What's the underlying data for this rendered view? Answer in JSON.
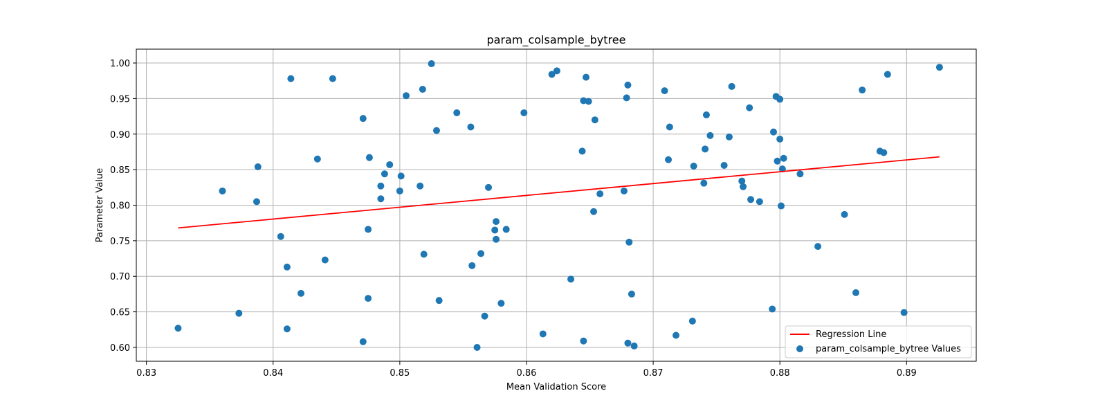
{
  "chart_data": {
    "type": "scatter",
    "title": "param_colsample_bytree",
    "xlabel": "Mean Validation Score",
    "ylabel": "Parameter Value",
    "xlim": [
      0.8292,
      0.8955
    ],
    "ylim": [
      0.5805,
      1.0195
    ],
    "xticks": [
      0.83,
      0.84,
      0.85,
      0.86,
      0.87,
      0.88,
      0.89
    ],
    "xtick_labels": [
      "0.83",
      "0.84",
      "0.85",
      "0.86",
      "0.87",
      "0.88",
      "0.89"
    ],
    "yticks": [
      0.6,
      0.65,
      0.7,
      0.75,
      0.8,
      0.85,
      0.9,
      0.95,
      1.0
    ],
    "ytick_labels": [
      "0.60",
      "0.65",
      "0.70",
      "0.75",
      "0.80",
      "0.85",
      "0.90",
      "0.95",
      "1.00"
    ],
    "grid": true,
    "legend_position": "lower right",
    "series": [
      {
        "name": "param_colsample_bytree Values",
        "kind": "scatter",
        "color": "#1f77b4",
        "points": [
          [
            0.8325,
            0.627
          ],
          [
            0.836,
            0.82
          ],
          [
            0.8373,
            0.648
          ],
          [
            0.8387,
            0.805
          ],
          [
            0.8388,
            0.854
          ],
          [
            0.8406,
            0.756
          ],
          [
            0.8411,
            0.713
          ],
          [
            0.8411,
            0.626
          ],
          [
            0.8414,
            0.978
          ],
          [
            0.8422,
            0.676
          ],
          [
            0.8435,
            0.865
          ],
          [
            0.8441,
            0.723
          ],
          [
            0.8447,
            0.978
          ],
          [
            0.8471,
            0.608
          ],
          [
            0.8471,
            0.922
          ],
          [
            0.8475,
            0.669
          ],
          [
            0.8475,
            0.766
          ],
          [
            0.8476,
            0.867
          ],
          [
            0.8485,
            0.827
          ],
          [
            0.8485,
            0.809
          ],
          [
            0.8488,
            0.844
          ],
          [
            0.8492,
            0.857
          ],
          [
            0.85,
            0.82
          ],
          [
            0.8501,
            0.841
          ],
          [
            0.8505,
            0.954
          ],
          [
            0.8516,
            0.827
          ],
          [
            0.8518,
            0.963
          ],
          [
            0.8519,
            0.731
          ],
          [
            0.8525,
            0.999
          ],
          [
            0.8529,
            0.905
          ],
          [
            0.8531,
            0.666
          ],
          [
            0.8545,
            0.93
          ],
          [
            0.8556,
            0.91
          ],
          [
            0.8557,
            0.715
          ],
          [
            0.8561,
            0.6
          ],
          [
            0.8564,
            0.732
          ],
          [
            0.8567,
            0.644
          ],
          [
            0.857,
            0.825
          ],
          [
            0.8575,
            0.765
          ],
          [
            0.8576,
            0.777
          ],
          [
            0.8576,
            0.752
          ],
          [
            0.858,
            0.662
          ],
          [
            0.8584,
            0.766
          ],
          [
            0.8598,
            0.93
          ],
          [
            0.8613,
            0.619
          ],
          [
            0.862,
            0.984
          ],
          [
            0.8624,
            0.989
          ],
          [
            0.8635,
            0.696
          ],
          [
            0.8644,
            0.876
          ],
          [
            0.8645,
            0.947
          ],
          [
            0.8645,
            0.609
          ],
          [
            0.8647,
            0.98
          ],
          [
            0.8649,
            0.946
          ],
          [
            0.8653,
            0.791
          ],
          [
            0.8654,
            0.92
          ],
          [
            0.8658,
            0.816
          ],
          [
            0.8677,
            0.82
          ],
          [
            0.8679,
            0.951
          ],
          [
            0.868,
            0.969
          ],
          [
            0.868,
            0.606
          ],
          [
            0.8681,
            0.748
          ],
          [
            0.8683,
            0.675
          ],
          [
            0.8685,
            0.602
          ],
          [
            0.8709,
            0.961
          ],
          [
            0.8712,
            0.864
          ],
          [
            0.8713,
            0.91
          ],
          [
            0.8718,
            0.617
          ],
          [
            0.8731,
            0.637
          ],
          [
            0.8732,
            0.855
          ],
          [
            0.874,
            0.831
          ],
          [
            0.8741,
            0.879
          ],
          [
            0.8742,
            0.927
          ],
          [
            0.8745,
            0.898
          ],
          [
            0.8756,
            0.856
          ],
          [
            0.876,
            0.896
          ],
          [
            0.8762,
            0.967
          ],
          [
            0.877,
            0.834
          ],
          [
            0.8771,
            0.826
          ],
          [
            0.8776,
            0.937
          ],
          [
            0.8777,
            0.808
          ],
          [
            0.8784,
            0.805
          ],
          [
            0.8794,
            0.654
          ],
          [
            0.8795,
            0.903
          ],
          [
            0.8797,
            0.953
          ],
          [
            0.8798,
            0.862
          ],
          [
            0.88,
            0.949
          ],
          [
            0.88,
            0.893
          ],
          [
            0.8801,
            0.799
          ],
          [
            0.8802,
            0.851
          ],
          [
            0.8803,
            0.866
          ],
          [
            0.8816,
            0.844
          ],
          [
            0.883,
            0.742
          ],
          [
            0.8851,
            0.787
          ],
          [
            0.886,
            0.677
          ],
          [
            0.8865,
            0.962
          ],
          [
            0.8879,
            0.876
          ],
          [
            0.8882,
            0.874
          ],
          [
            0.8885,
            0.984
          ],
          [
            0.8898,
            0.649
          ],
          [
            0.8926,
            0.994
          ]
        ]
      },
      {
        "name": "Regression Line",
        "kind": "line",
        "color": "#ff0000",
        "points": [
          [
            0.8325,
            0.768
          ],
          [
            0.8926,
            0.868
          ]
        ]
      }
    ]
  }
}
